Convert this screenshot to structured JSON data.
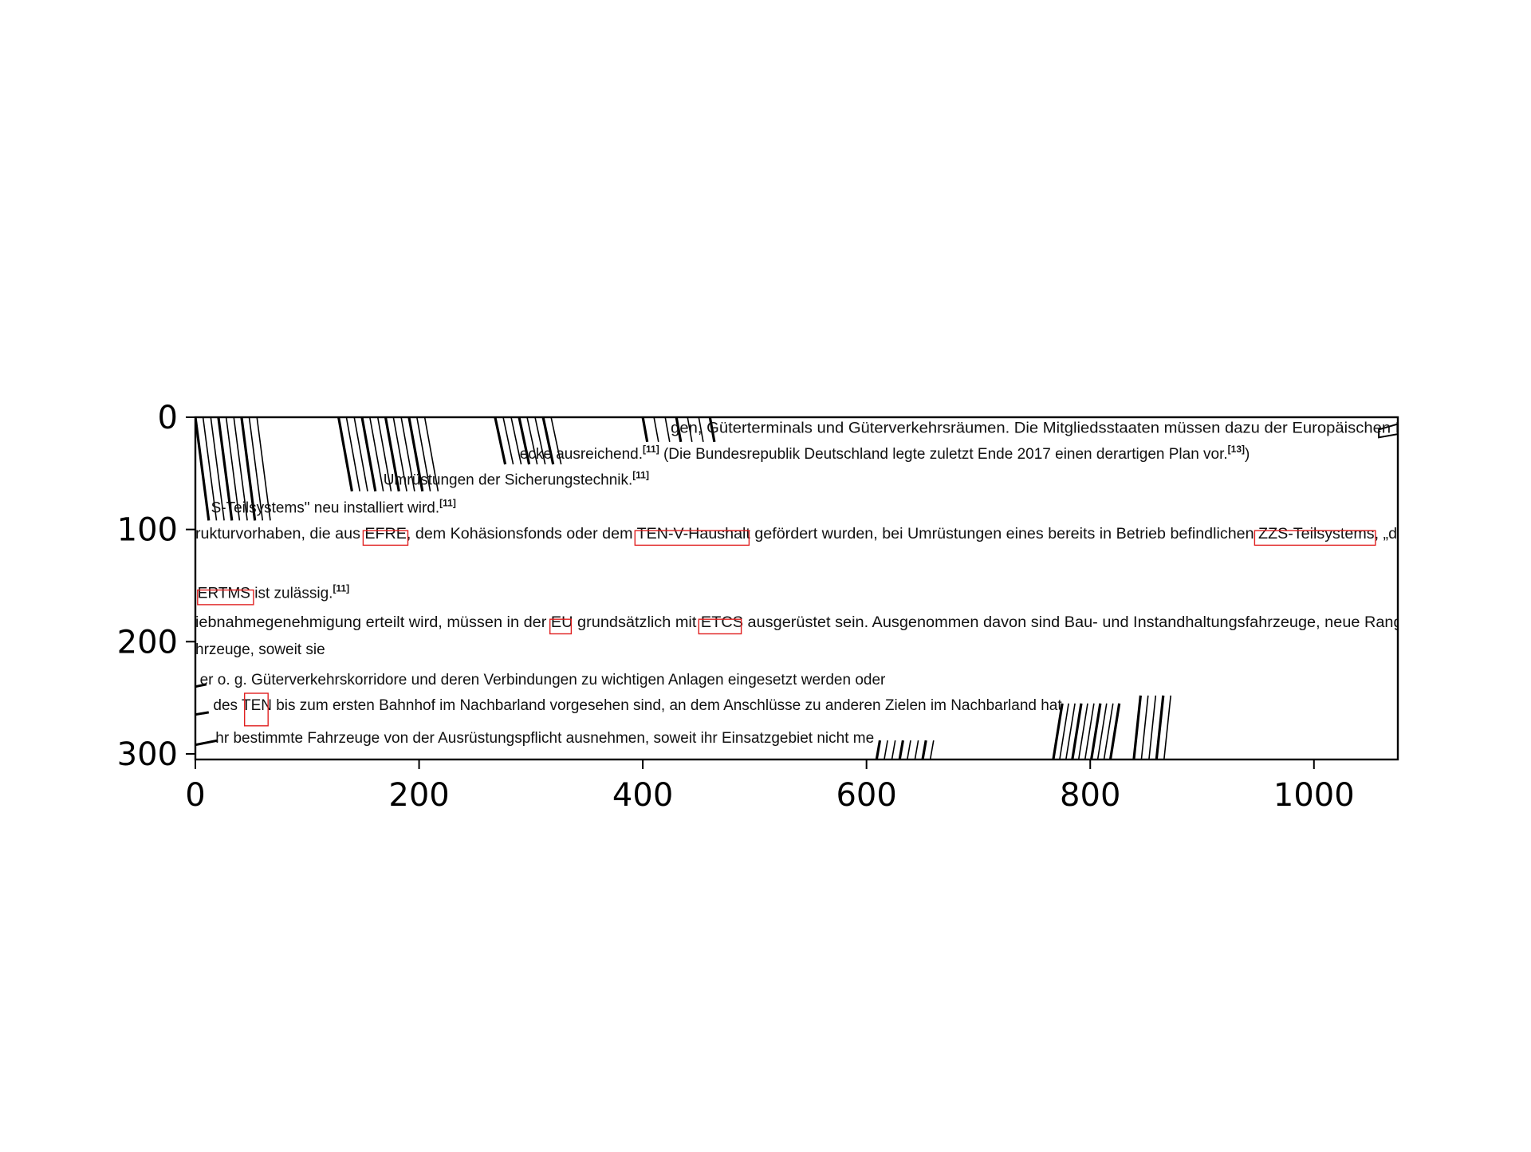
{
  "axes": {
    "x_ticks": [
      "0",
      "200",
      "400",
      "600",
      "800",
      "1000"
    ],
    "y_ticks": [
      "0",
      "100",
      "200",
      "300"
    ],
    "xlim": [
      0,
      1075
    ],
    "ylim": [
      305,
      0
    ]
  },
  "colors": {
    "highlight": "#e02020",
    "text": "#111111",
    "frame": "#000000"
  },
  "document": {
    "lines": [
      {
        "text": "gen, Güterterminals und Güterverkehrsräumen. Die Mitgliedsstaaten müssen dazu der Europäischen K",
        "sup": "",
        "x": 425,
        "y": 14
      },
      {
        "text": "ecke ausreichend.",
        "sup": "[11]",
        "tail": "(Die Bundesrepublik Deutschland legte zuletzt Ende 2017 einen derartigen Plan vor.",
        "tail_sup": "[13]",
        "tail_end": ")",
        "x": 290,
        "y": 37
      },
      {
        "text": "Umrüstungen der Sicherungstechnik.",
        "sup": "[11]",
        "x": 168,
        "y": 60
      },
      {
        "text": "S-Teilsystems\" neu installiert wird.",
        "sup": "[11]",
        "x": 14,
        "y": 85
      },
      {
        "text": "ruktur­vorhaben, die aus EFRE, dem Kohäsionsfonds oder dem TEN-V-Haushalt gefördert wurden, bei Umrüstungen eines bereits in Betrieb befindlichen ZZS-Teilsystems, „da",
        "sup": "",
        "x": 0,
        "y": 108
      },
      {
        "text": "ERTMS ist zulässig.",
        "sup": "[11]",
        "x": 2,
        "y": 161
      },
      {
        "text": "iebnahmegenehmigung erteilt wird, müssen in der EU grundsätzlich mit ETCS ausgerüstet sein. Ausgenommen davon sind Bau- und Instandhaltungsfahrzeuge, neue Rangi",
        "sup": "",
        "x": 0,
        "y": 187
      },
      {
        "text": "hrzeuge, soweit sie",
        "sup": "",
        "x": 0,
        "y": 211
      },
      {
        "text": "er o. g. Güterverkehrskorridore und deren Verbindungen zu wichtigen Anlagen eingesetzt werden oder",
        "sup": "",
        "x": 4,
        "y": 238
      },
      {
        "text": "des TEN bis zum ersten Bahnhof im Nachbarland vorgesehen sind, an dem Anschlüsse zu anderen Zielen im Nachbarland hat",
        "sup": "",
        "x": 16,
        "y": 261
      },
      {
        "text": "hr bestimmte Fahrzeuge von der Ausrüstungspflicht ausnehmen, soweit ihr Einsatzgebiet nicht me",
        "sup": "",
        "x": 18,
        "y": 290
      }
    ],
    "highlighted_terms": [
      "EFRE,",
      "TEN-V-Haushalt",
      "ZZS-Teilsystems,",
      "ERTMS",
      "EU",
      "ETCS",
      "TEN"
    ]
  }
}
